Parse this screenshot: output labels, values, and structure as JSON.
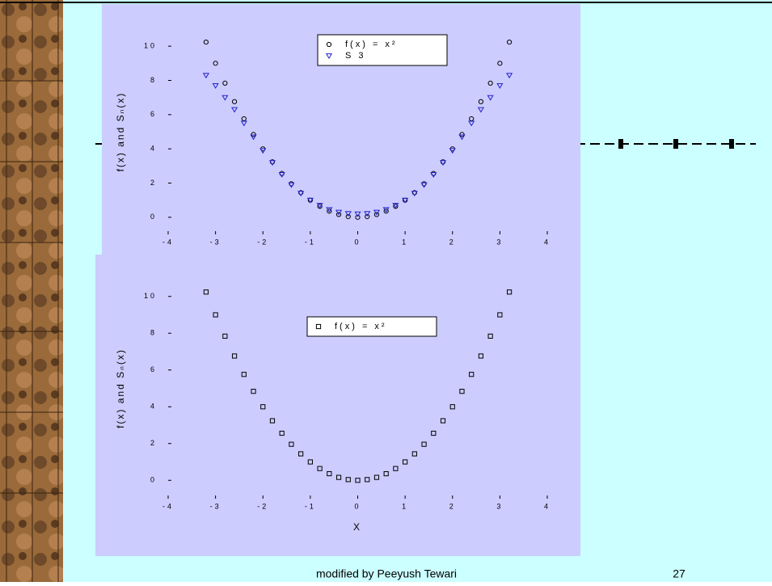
{
  "chart_data": [
    {
      "type": "scatter",
      "ylabel": "f(x) and Sₙ(x)",
      "xlim": [
        -4,
        4
      ],
      "ylim": [
        -1,
        11
      ],
      "xticks": [
        -4,
        -3,
        -2,
        -1,
        0,
        1,
        2,
        3,
        4
      ],
      "yticks": [
        0,
        2,
        4,
        6,
        8,
        10
      ],
      "legend": "upper center",
      "series": [
        {
          "name": "f(x) = x²",
          "color": "#000000",
          "marker": "circle",
          "x": [
            -3.2,
            -3.0,
            -2.8,
            -2.6,
            -2.4,
            -2.2,
            -2.0,
            -1.8,
            -1.6,
            -1.4,
            -1.2,
            -1.0,
            -0.8,
            -0.6,
            -0.4,
            -0.2,
            0,
            0.2,
            0.4,
            0.6,
            0.8,
            1.0,
            1.2,
            1.4,
            1.6,
            1.8,
            2.0,
            2.2,
            2.4,
            2.6,
            2.8,
            3.0,
            3.2
          ],
          "values": [
            10.24,
            9.0,
            7.84,
            6.76,
            5.76,
            4.84,
            4.0,
            3.24,
            2.56,
            1.96,
            1.44,
            1.0,
            0.64,
            0.36,
            0.16,
            0.04,
            0,
            0.04,
            0.16,
            0.36,
            0.64,
            1.0,
            1.44,
            1.96,
            2.56,
            3.24,
            4.0,
            4.84,
            5.76,
            6.76,
            7.84,
            9.0,
            10.24
          ]
        },
        {
          "name": "S 3",
          "color": "#2222cc",
          "marker": "triangle",
          "x": [
            -3.2,
            -3.0,
            -2.8,
            -2.6,
            -2.4,
            -2.2,
            -2.0,
            -1.8,
            -1.6,
            -1.4,
            -1.2,
            -1.0,
            -0.8,
            -0.6,
            -0.4,
            -0.2,
            0,
            0.2,
            0.4,
            0.6,
            0.8,
            1.0,
            1.2,
            1.4,
            1.6,
            1.8,
            2.0,
            2.2,
            2.4,
            2.6,
            2.8,
            3.0,
            3.2
          ],
          "values": [
            8.3,
            7.7,
            7.0,
            6.3,
            5.5,
            4.7,
            3.9,
            3.2,
            2.5,
            1.9,
            1.4,
            1.0,
            0.7,
            0.45,
            0.3,
            0.22,
            0.2,
            0.22,
            0.3,
            0.45,
            0.7,
            1.0,
            1.4,
            1.9,
            2.5,
            3.2,
            3.9,
            4.7,
            5.5,
            6.3,
            7.0,
            7.7,
            8.3
          ]
        }
      ]
    },
    {
      "type": "scatter",
      "ylabel": "f(x) and Sₙ(x)",
      "xlabel": "X",
      "xlim": [
        -4,
        4
      ],
      "ylim": [
        -1,
        11
      ],
      "xticks": [
        -4,
        -3,
        -2,
        -1,
        0,
        1,
        2,
        3,
        4
      ],
      "yticks": [
        0,
        2,
        4,
        6,
        8,
        10
      ],
      "legend": "upper center",
      "series": [
        {
          "name": "f(x) = x²",
          "color": "#000000",
          "marker": "square",
          "x": [
            -3.2,
            -3.0,
            -2.8,
            -2.6,
            -2.4,
            -2.2,
            -2.0,
            -1.8,
            -1.6,
            -1.4,
            -1.2,
            -1.0,
            -0.8,
            -0.6,
            -0.4,
            -0.2,
            0,
            0.2,
            0.4,
            0.6,
            0.8,
            1.0,
            1.2,
            1.4,
            1.6,
            1.8,
            2.0,
            2.2,
            2.4,
            2.6,
            2.8,
            3.0,
            3.2
          ],
          "values": [
            10.24,
            9.0,
            7.84,
            6.76,
            5.76,
            4.84,
            4.0,
            3.24,
            2.56,
            1.96,
            1.44,
            1.0,
            0.64,
            0.36,
            0.16,
            0.04,
            0,
            0.04,
            0.16,
            0.36,
            0.64,
            1.0,
            1.44,
            1.96,
            2.56,
            3.24,
            4.0,
            4.84,
            5.76,
            6.76,
            7.84,
            9.0,
            10.24
          ]
        }
      ]
    }
  ],
  "footer": "modified by Peeyush Tewari",
  "page_number": "27"
}
